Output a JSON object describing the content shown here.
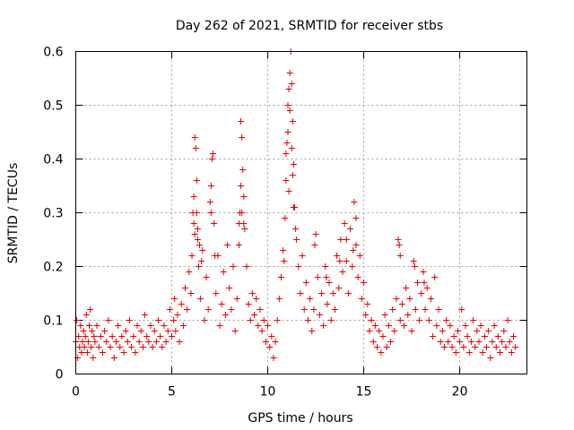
{
  "chart_data": {
    "type": "scatter",
    "title": "Day 262 of 2021, SRMTID for receiver stbs",
    "xlabel": "GPS time / hours",
    "ylabel": "SRMTID / TECUs",
    "xlim": [
      0,
      23.5
    ],
    "ylim": [
      0,
      0.6
    ],
    "xticks": [
      0,
      5,
      10,
      15,
      20
    ],
    "yticks": [
      0,
      0.1,
      0.2,
      0.3,
      0.4,
      0.5,
      0.6
    ],
    "ytick_labels": [
      "0",
      "0.1",
      "0.2",
      "0.3",
      "0.4",
      "0.5",
      "0.6"
    ],
    "grid": true,
    "marker": "+",
    "marker_color": "#e00000",
    "series": [
      {
        "name": "SRMTID",
        "points": [
          [
            0.0,
            0.06
          ],
          [
            0.05,
            0.1
          ],
          [
            0.1,
            0.03
          ],
          [
            0.15,
            0.07
          ],
          [
            0.2,
            0.05
          ],
          [
            0.25,
            0.09
          ],
          [
            0.3,
            0.04
          ],
          [
            0.35,
            0.06
          ],
          [
            0.4,
            0.08
          ],
          [
            0.45,
            0.05
          ],
          [
            0.5,
            0.07
          ],
          [
            0.55,
            0.11
          ],
          [
            0.6,
            0.04
          ],
          [
            0.65,
            0.06
          ],
          [
            0.7,
            0.09
          ],
          [
            0.75,
            0.12
          ],
          [
            0.8,
            0.05
          ],
          [
            0.85,
            0.08
          ],
          [
            0.9,
            0.03
          ],
          [
            0.95,
            0.07
          ],
          [
            1.0,
            0.06
          ],
          [
            1.1,
            0.09
          ],
          [
            1.2,
            0.05
          ],
          [
            1.3,
            0.07
          ],
          [
            1.4,
            0.04
          ],
          [
            1.5,
            0.08
          ],
          [
            1.6,
            0.06
          ],
          [
            1.7,
            0.1
          ],
          [
            1.8,
            0.05
          ],
          [
            1.9,
            0.07
          ],
          [
            2.0,
            0.03
          ],
          [
            2.1,
            0.06
          ],
          [
            2.2,
            0.09
          ],
          [
            2.3,
            0.05
          ],
          [
            2.4,
            0.07
          ],
          [
            2.5,
            0.04
          ],
          [
            2.6,
            0.08
          ],
          [
            2.7,
            0.06
          ],
          [
            2.8,
            0.1
          ],
          [
            2.9,
            0.05
          ],
          [
            3.0,
            0.07
          ],
          [
            3.1,
            0.04
          ],
          [
            3.2,
            0.09
          ],
          [
            3.3,
            0.06
          ],
          [
            3.4,
            0.08
          ],
          [
            3.5,
            0.05
          ],
          [
            3.6,
            0.11
          ],
          [
            3.7,
            0.07
          ],
          [
            3.8,
            0.06
          ],
          [
            3.9,
            0.09
          ],
          [
            4.0,
            0.05
          ],
          [
            4.1,
            0.08
          ],
          [
            4.2,
            0.06
          ],
          [
            4.3,
            0.1
          ],
          [
            4.4,
            0.07
          ],
          [
            4.5,
            0.05
          ],
          [
            4.6,
            0.09
          ],
          [
            4.7,
            0.06
          ],
          [
            4.8,
            0.08
          ],
          [
            4.9,
            0.12
          ],
          [
            5.0,
            0.07
          ],
          [
            5.1,
            0.1
          ],
          [
            5.15,
            0.14
          ],
          [
            5.2,
            0.08
          ],
          [
            5.3,
            0.11
          ],
          [
            5.4,
            0.06
          ],
          [
            5.5,
            0.13
          ],
          [
            5.6,
            0.09
          ],
          [
            5.7,
            0.16
          ],
          [
            5.8,
            0.12
          ],
          [
            5.9,
            0.19
          ],
          [
            6.0,
            0.15
          ],
          [
            6.05,
            0.22
          ],
          [
            6.1,
            0.3
          ],
          [
            6.15,
            0.28
          ],
          [
            6.2,
            0.44
          ],
          [
            6.25,
            0.42
          ],
          [
            6.3,
            0.36
          ],
          [
            6.35,
            0.25
          ],
          [
            6.4,
            0.2
          ],
          [
            6.5,
            0.14
          ],
          [
            6.6,
            0.23
          ],
          [
            6.7,
            0.1
          ],
          [
            6.8,
            0.18
          ],
          [
            6.9,
            0.12
          ],
          [
            7.0,
            0.32
          ],
          [
            7.05,
            0.35
          ],
          [
            7.1,
            0.4
          ],
          [
            7.15,
            0.41
          ],
          [
            7.2,
            0.28
          ],
          [
            7.3,
            0.15
          ],
          [
            7.4,
            0.22
          ],
          [
            7.5,
            0.09
          ],
          [
            7.6,
            0.13
          ],
          [
            7.7,
            0.19
          ],
          [
            7.8,
            0.11
          ],
          [
            7.9,
            0.24
          ],
          [
            8.0,
            0.16
          ],
          [
            8.1,
            0.12
          ],
          [
            8.2,
            0.2
          ],
          [
            8.3,
            0.08
          ],
          [
            8.4,
            0.14
          ],
          [
            8.5,
            0.28
          ],
          [
            8.55,
            0.3
          ],
          [
            8.6,
            0.47
          ],
          [
            8.65,
            0.44
          ],
          [
            8.7,
            0.38
          ],
          [
            8.75,
            0.33
          ],
          [
            8.8,
            0.27
          ],
          [
            8.9,
            0.2
          ],
          [
            9.0,
            0.13
          ],
          [
            9.1,
            0.1
          ],
          [
            9.2,
            0.15
          ],
          [
            9.3,
            0.11
          ],
          [
            9.4,
            0.14
          ],
          [
            9.5,
            0.09
          ],
          [
            9.6,
            0.12
          ],
          [
            9.7,
            0.08
          ],
          [
            9.8,
            0.1
          ],
          [
            9.9,
            0.06
          ],
          [
            10.0,
            0.09
          ],
          [
            10.1,
            0.05
          ],
          [
            10.2,
            0.07
          ],
          [
            10.3,
            0.03
          ],
          [
            10.4,
            0.06
          ],
          [
            10.5,
            0.1
          ],
          [
            10.6,
            0.14
          ],
          [
            10.7,
            0.18
          ],
          [
            10.8,
            0.23
          ],
          [
            10.9,
            0.29
          ],
          [
            10.95,
            0.36
          ],
          [
            11.0,
            0.43
          ],
          [
            11.05,
            0.5
          ],
          [
            11.1,
            0.53
          ],
          [
            11.15,
            0.56
          ],
          [
            11.2,
            0.6
          ],
          [
            11.25,
            0.54
          ],
          [
            11.3,
            0.47
          ],
          [
            11.35,
            0.39
          ],
          [
            11.4,
            0.31
          ],
          [
            11.5,
            0.25
          ],
          [
            11.6,
            0.2
          ],
          [
            11.7,
            0.15
          ],
          [
            11.8,
            0.22
          ],
          [
            11.9,
            0.12
          ],
          [
            12.0,
            0.17
          ],
          [
            12.1,
            0.1
          ],
          [
            12.2,
            0.14
          ],
          [
            12.3,
            0.08
          ],
          [
            12.4,
            0.12
          ],
          [
            12.5,
            0.26
          ],
          [
            12.6,
            0.18
          ],
          [
            12.7,
            0.11
          ],
          [
            12.8,
            0.15
          ],
          [
            12.9,
            0.09
          ],
          [
            13.0,
            0.2
          ],
          [
            13.1,
            0.13
          ],
          [
            13.2,
            0.17
          ],
          [
            13.3,
            0.1
          ],
          [
            13.4,
            0.15
          ],
          [
            13.5,
            0.12
          ],
          [
            13.6,
            0.22
          ],
          [
            13.7,
            0.16
          ],
          [
            13.8,
            0.25
          ],
          [
            13.9,
            0.19
          ],
          [
            14.0,
            0.28
          ],
          [
            14.1,
            0.21
          ],
          [
            14.2,
            0.15
          ],
          [
            14.3,
            0.27
          ],
          [
            14.4,
            0.2
          ],
          [
            14.5,
            0.32
          ],
          [
            14.6,
            0.24
          ],
          [
            14.7,
            0.18
          ],
          [
            14.8,
            0.22
          ],
          [
            14.9,
            0.14
          ],
          [
            15.0,
            0.17
          ],
          [
            15.1,
            0.11
          ],
          [
            15.2,
            0.13
          ],
          [
            15.3,
            0.08
          ],
          [
            15.4,
            0.1
          ],
          [
            15.5,
            0.06
          ],
          [
            15.6,
            0.09
          ],
          [
            15.7,
            0.05
          ],
          [
            15.8,
            0.08
          ],
          [
            15.9,
            0.04
          ],
          [
            16.0,
            0.07
          ],
          [
            16.1,
            0.11
          ],
          [
            16.2,
            0.05
          ],
          [
            16.3,
            0.09
          ],
          [
            16.4,
            0.06
          ],
          [
            16.5,
            0.12
          ],
          [
            16.6,
            0.08
          ],
          [
            16.7,
            0.14
          ],
          [
            16.8,
            0.25
          ],
          [
            16.85,
            0.24
          ],
          [
            16.9,
            0.1
          ],
          [
            17.0,
            0.13
          ],
          [
            17.1,
            0.09
          ],
          [
            17.2,
            0.16
          ],
          [
            17.3,
            0.11
          ],
          [
            17.4,
            0.14
          ],
          [
            17.5,
            0.08
          ],
          [
            17.6,
            0.21
          ],
          [
            17.7,
            0.12
          ],
          [
            17.8,
            0.17
          ],
          [
            17.9,
            0.1
          ],
          [
            18.0,
            0.15
          ],
          [
            18.1,
            0.19
          ],
          [
            18.2,
            0.12
          ],
          [
            18.3,
            0.16
          ],
          [
            18.4,
            0.1
          ],
          [
            18.5,
            0.14
          ],
          [
            18.6,
            0.07
          ],
          [
            18.7,
            0.18
          ],
          [
            18.8,
            0.09
          ],
          [
            18.9,
            0.12
          ],
          [
            19.0,
            0.06
          ],
          [
            19.1,
            0.08
          ],
          [
            19.2,
            0.05
          ],
          [
            19.3,
            0.1
          ],
          [
            19.4,
            0.06
          ],
          [
            19.5,
            0.09
          ],
          [
            19.6,
            0.05
          ],
          [
            19.7,
            0.07
          ],
          [
            19.8,
            0.04
          ],
          [
            19.9,
            0.08
          ],
          [
            20.0,
            0.06
          ],
          [
            20.1,
            0.12
          ],
          [
            20.2,
            0.05
          ],
          [
            20.3,
            0.09
          ],
          [
            20.4,
            0.07
          ],
          [
            20.5,
            0.04
          ],
          [
            20.6,
            0.06
          ],
          [
            20.7,
            0.1
          ],
          [
            20.8,
            0.05
          ],
          [
            20.9,
            0.08
          ],
          [
            21.0,
            0.06
          ],
          [
            21.1,
            0.09
          ],
          [
            21.2,
            0.04
          ],
          [
            21.3,
            0.07
          ],
          [
            21.4,
            0.05
          ],
          [
            21.5,
            0.08
          ],
          [
            21.6,
            0.03
          ],
          [
            21.7,
            0.06
          ],
          [
            21.8,
            0.09
          ],
          [
            21.9,
            0.05
          ],
          [
            22.0,
            0.07
          ],
          [
            22.1,
            0.04
          ],
          [
            22.2,
            0.06
          ],
          [
            22.3,
            0.08
          ],
          [
            22.4,
            0.05
          ],
          [
            22.5,
            0.1
          ],
          [
            22.6,
            0.06
          ],
          [
            22.7,
            0.04
          ],
          [
            22.8,
            0.07
          ],
          [
            22.9,
            0.05
          ],
          [
            6.3,
            0.3
          ],
          [
            6.35,
            0.27
          ],
          [
            6.45,
            0.24
          ],
          [
            6.55,
            0.21
          ],
          [
            6.2,
            0.26
          ],
          [
            6.15,
            0.33
          ],
          [
            7.05,
            0.3
          ],
          [
            7.25,
            0.22
          ],
          [
            8.6,
            0.35
          ],
          [
            8.65,
            0.3
          ],
          [
            8.5,
            0.24
          ],
          [
            8.75,
            0.28
          ],
          [
            10.95,
            0.41
          ],
          [
            11.05,
            0.45
          ],
          [
            11.15,
            0.49
          ],
          [
            11.25,
            0.42
          ],
          [
            11.3,
            0.37
          ],
          [
            11.1,
            0.34
          ],
          [
            11.35,
            0.31
          ],
          [
            11.45,
            0.27
          ],
          [
            14.1,
            0.25
          ],
          [
            14.45,
            0.23
          ],
          [
            14.6,
            0.29
          ],
          [
            13.75,
            0.21
          ],
          [
            16.9,
            0.22
          ],
          [
            17.65,
            0.2
          ],
          [
            18.15,
            0.17
          ],
          [
            12.45,
            0.24
          ],
          [
            13.05,
            0.18
          ],
          [
            10.85,
            0.21
          ]
        ]
      }
    ]
  }
}
